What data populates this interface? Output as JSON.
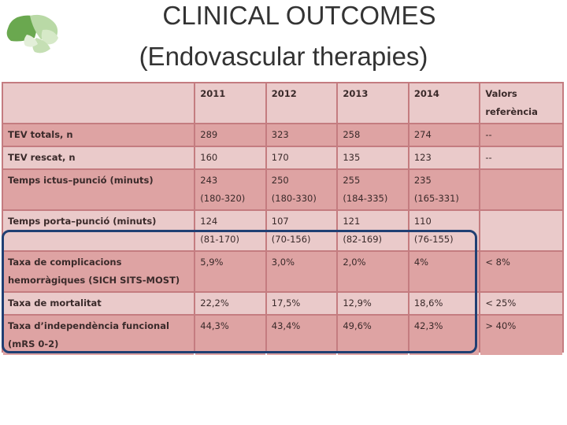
{
  "title": {
    "line1": "CLINICAL OUTCOMES",
    "line2": "(Endovascular therapies)"
  },
  "table": {
    "header": {
      "label": "",
      "years": [
        "2011",
        "2012",
        "2013",
        "2014"
      ],
      "ref_line1": "Valors",
      "ref_line2": "referència"
    },
    "rows": [
      {
        "label": "TEV totals, n",
        "values": [
          "289",
          "323",
          "258",
          "274"
        ],
        "ref": "--"
      },
      {
        "label": "TEV rescat, n",
        "values": [
          "160",
          "170",
          "135",
          "123"
        ],
        "ref": "--"
      },
      {
        "label": "Temps ictus–punció (minuts)",
        "values": [
          "243",
          "250",
          "255",
          "235"
        ],
        "ranges": [
          "(180-320)",
          "(180-330)",
          "(184-335)",
          "(165-331)"
        ],
        "ref": ""
      },
      {
        "label": "Temps porta–punció (minuts)",
        "values": [
          "124",
          "107",
          "121",
          "110"
        ],
        "ranges": [
          "(81-170)",
          "(70-156)",
          "(82-169)",
          "(76-155)"
        ],
        "ref": ""
      },
      {
        "label": "Taxa de complicacions hemorràgiques (SICH SITS-MOST)",
        "values": [
          "5,9%",
          "3,0%",
          "2,0%",
          "4%"
        ],
        "ref": "< 8%"
      },
      {
        "label": "Taxa de mortalitat",
        "values": [
          "22,2%",
          "17,5%",
          "12,9%",
          "18,6%"
        ],
        "ref": "< 25%"
      },
      {
        "label": "Taxa d’independència funcional (mRS 0-2)",
        "values": [
          "44,3%",
          "43,4%",
          "49,6%",
          "42,3%"
        ],
        "ref": "> 40%"
      }
    ]
  },
  "colors": {
    "title": "#333333",
    "table_border": "#c47c80",
    "cell_light": "#eacaca",
    "cell_dark": "#dea3a3",
    "highlight_box": "#203f73"
  },
  "icons": {
    "logo": "brain-logo-icon"
  }
}
